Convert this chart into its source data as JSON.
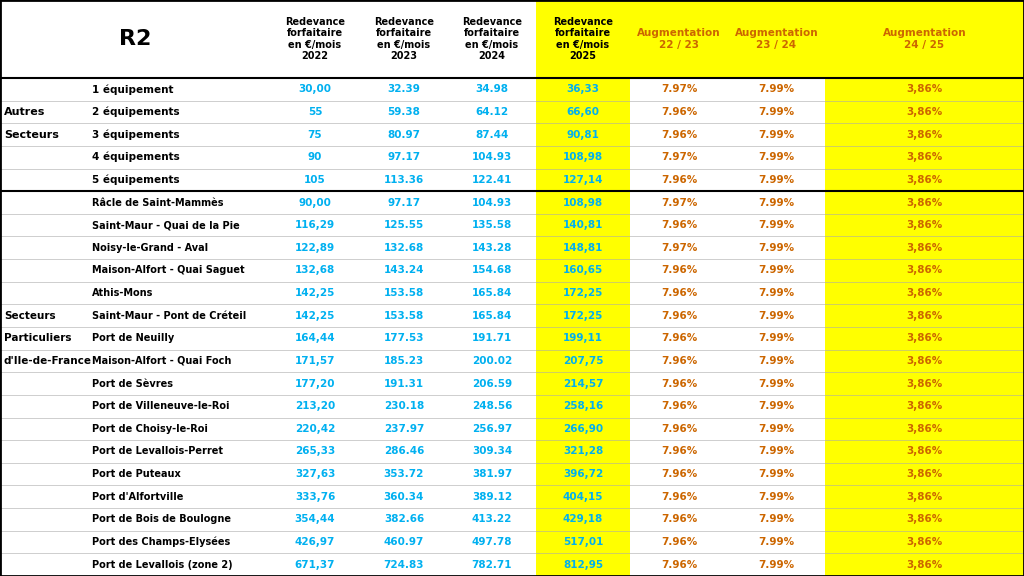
{
  "title": "R2",
  "col_headers": [
    "",
    "",
    "Redevance\nforfaitaire\nen €/mois\n2022",
    "Redevance\nforfaitaire\nen €/mois\n2023",
    "Redevance\nforfaitaire\nen €/mois\n2024",
    "Redevance\nforfaitaire\nen €/mois\n2025",
    "Augmentation\n22 / 23",
    "Augmentation\n23 / 24",
    "Augmentation\n24 / 25"
  ],
  "rows_section1": [
    [
      "1 équipement",
      "30,00",
      "32.39",
      "34.98",
      "36,33",
      "7.97%",
      "7.99%",
      "3,86%"
    ],
    [
      "2 équipements",
      "55",
      "59.38",
      "64.12",
      "66,60",
      "7.96%",
      "7.99%",
      "3,86%"
    ],
    [
      "3 équipements",
      "75",
      "80.97",
      "87.44",
      "90,81",
      "7.96%",
      "7.99%",
      "3,86%"
    ],
    [
      "4 équipements",
      "90",
      "97.17",
      "104.93",
      "108,98",
      "7.97%",
      "7.99%",
      "3,86%"
    ],
    [
      "5 équipements",
      "105",
      "113.36",
      "122.41",
      "127,14",
      "7.96%",
      "7.99%",
      "3,86%"
    ]
  ],
  "rows_section2": [
    [
      "Râcle de Saint-Mammès",
      "90,00",
      "97.17",
      "104.93",
      "108,98",
      "7.97%",
      "7.99%",
      "3,86%"
    ],
    [
      "Saint-Maur - Quai de la Pie",
      "116,29",
      "125.55",
      "135.58",
      "140,81",
      "7.96%",
      "7.99%",
      "3,86%"
    ],
    [
      "Noisy-le-Grand - Aval",
      "122,89",
      "132.68",
      "143.28",
      "148,81",
      "7.97%",
      "7.99%",
      "3,86%"
    ],
    [
      "Maison-Alfort - Quai Saguet",
      "132,68",
      "143.24",
      "154.68",
      "160,65",
      "7.96%",
      "7.99%",
      "3,86%"
    ],
    [
      "Athis-Mons",
      "142,25",
      "153.58",
      "165.84",
      "172,25",
      "7.96%",
      "7.99%",
      "3,86%"
    ],
    [
      "Saint-Maur - Pont de Créteil",
      "142,25",
      "153.58",
      "165.84",
      "172,25",
      "7.96%",
      "7.99%",
      "3,86%"
    ],
    [
      "Port de Neuilly",
      "164,44",
      "177.53",
      "191.71",
      "199,11",
      "7.96%",
      "7.99%",
      "3,86%"
    ],
    [
      "Maison-Alfort - Quai Foch",
      "171,57",
      "185.23",
      "200.02",
      "207,75",
      "7.96%",
      "7.99%",
      "3,86%"
    ],
    [
      "Port de Sèvres",
      "177,20",
      "191.31",
      "206.59",
      "214,57",
      "7.96%",
      "7.99%",
      "3,86%"
    ],
    [
      "Port de Villeneuve-le-Roi",
      "213,20",
      "230.18",
      "248.56",
      "258,16",
      "7.96%",
      "7.99%",
      "3,86%"
    ],
    [
      "Port de Choisy-le-Roi",
      "220,42",
      "237.97",
      "256.97",
      "266,90",
      "7.96%",
      "7.99%",
      "3,86%"
    ],
    [
      "Port de Levallois-Perret",
      "265,33",
      "286.46",
      "309.34",
      "321,28",
      "7.96%",
      "7.99%",
      "3,86%"
    ],
    [
      "Port de Puteaux",
      "327,63",
      "353.72",
      "381.97",
      "396,72",
      "7.96%",
      "7.99%",
      "3,86%"
    ],
    [
      "Port d'Alfortville",
      "333,76",
      "360.34",
      "389.12",
      "404,15",
      "7.96%",
      "7.99%",
      "3,86%"
    ],
    [
      "Port de Bois de Boulogne",
      "354,44",
      "382.66",
      "413.22",
      "429,18",
      "7.96%",
      "7.99%",
      "3,86%"
    ],
    [
      "Port des Champs-Elysées",
      "426,97",
      "460.97",
      "497.78",
      "517,01",
      "7.96%",
      "7.99%",
      "3,86%"
    ],
    [
      "Port de Levallois (zone 2)",
      "671,37",
      "724.83",
      "782.71",
      "812,95",
      "7.96%",
      "7.99%",
      "3,86%"
    ]
  ],
  "section1_left_labels": [
    "",
    "Autres",
    "Secteurs",
    "",
    ""
  ],
  "section2_left_labels": [
    "",
    "",
    "",
    "",
    "",
    "Secteurs",
    "Particuliers",
    "d'Ile-de-France",
    "",
    "",
    "",
    "",
    "",
    "",
    "",
    "",
    ""
  ],
  "bg_white": "#ffffff",
  "bg_yellow": "#ffff00",
  "color_cyan": "#00b0f0",
  "color_orange": "#cc6600",
  "color_black": "#000000"
}
